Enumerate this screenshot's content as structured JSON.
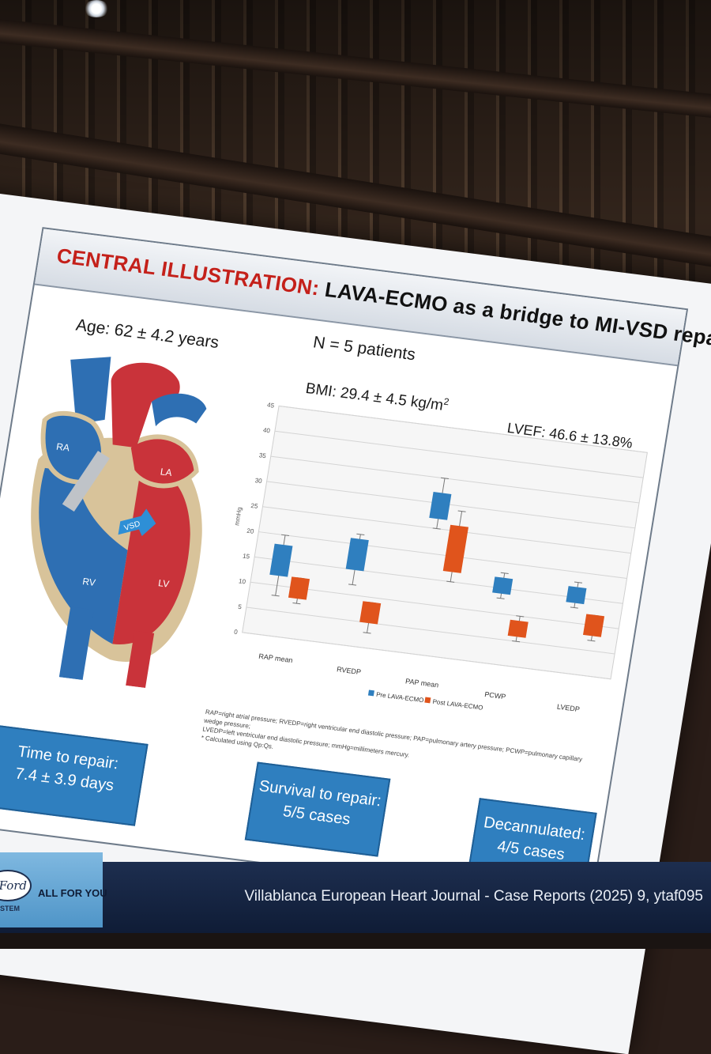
{
  "slide": {
    "title_red": "CENTRAL ILLUSTRATION:",
    "title_black": " LAVA-ECMO as a bridge to MI-VSD repair",
    "n_patients": "N = 5 patients",
    "age": "Age: 62 ± 4.2 years",
    "bmi_prefix": "BMI: 29.4 ± 4.5 kg/m",
    "bmi_sup": "2",
    "lvef": "LVEF: 46.6 ± 13.8%",
    "heart_labels": {
      "ra": "RA",
      "la": "LA",
      "lv": "LV",
      "rv": "RV",
      "vsd": "VSD"
    },
    "footnote": {
      "line1": "RAP=right atrial pressure; RVEDP=right ventricular end diastolic pressure; PAP=pulmonary artery pressure; PCWP=pulmonary capillary wedge pressure;",
      "line2": "LVEDP=left ventricular end diastolic pressure; mmHg=millimeters mercury.",
      "line3": "* Calculated using Qp:Qs."
    },
    "boxes": {
      "time_line1": "Time to repair:",
      "time_line2": "7.4 ± 3.9 days",
      "survival_line1": "Survival to repair:",
      "survival_line2": "5/5 cases",
      "decan_line1": "Decannulated:",
      "decan_line2": "4/5 cases"
    }
  },
  "banner": {
    "slogan": "ALL FOR YOU",
    "logo_text": "Ford",
    "logo_sub": "STEM",
    "citation": "Villablanca European Heart Journal - Case Reports (2025) 9, ytaf095"
  },
  "colors": {
    "pre": "#2f7fbf",
    "post": "#e0541c",
    "title_red": "#c4201a",
    "box_blue": "#2f7fbf"
  },
  "chart_data": {
    "type": "box",
    "ylabel": "mmHg",
    "ylim": [
      0,
      45
    ],
    "yticks": [
      0,
      5,
      10,
      15,
      20,
      25,
      30,
      35,
      40,
      45
    ],
    "categories": [
      "RAP mean",
      "RVEDP",
      "PAP mean",
      "PCWP",
      "LVEDP"
    ],
    "series": [
      {
        "name": "Pre LAVA-ECMO",
        "color": "#2f7fbf",
        "boxes": [
          {
            "min": 8,
            "q1": 12,
            "q3": 18,
            "max": 20
          },
          {
            "min": 12,
            "q1": 15,
            "q3": 21,
            "max": 22
          },
          {
            "min": 25,
            "q1": 27,
            "q3": 32,
            "max": 35
          },
          {
            "min": 13,
            "q1": 14,
            "q3": 17,
            "max": 18
          },
          {
            "min": 13,
            "q1": 14,
            "q3": 17,
            "max": 18
          }
        ]
      },
      {
        "name": "Post LAVA-ECMO",
        "color": "#e0541c",
        "boxes": [
          {
            "min": 7,
            "q1": 8,
            "q3": 12,
            "max": 12
          },
          {
            "min": 3,
            "q1": 5,
            "q3": 9,
            "max": 9
          },
          {
            "min": 15,
            "q1": 17,
            "q3": 26,
            "max": 29
          },
          {
            "min": 5,
            "q1": 6,
            "q3": 9,
            "max": 10
          },
          {
            "min": 7,
            "q1": 8,
            "q3": 12,
            "max": 12
          }
        ]
      }
    ]
  }
}
